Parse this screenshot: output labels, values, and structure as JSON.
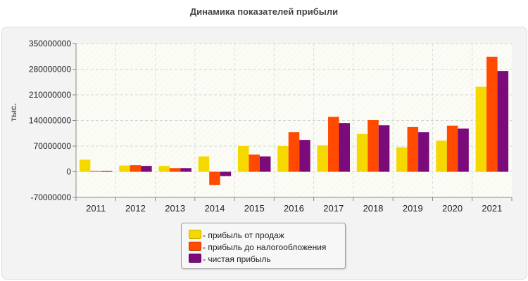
{
  "title": "Динамика показателей прибыли",
  "chart_data": {
    "type": "bar",
    "title": "Динамика показателей прибыли",
    "xlabel": "",
    "ylabel": "тыс.",
    "categories": [
      "2011",
      "2012",
      "2013",
      "2014",
      "2015",
      "2016",
      "2017",
      "2018",
      "2019",
      "2020",
      "2021"
    ],
    "series": [
      {
        "name": "- прибыль от продаж",
        "color": "#f5d800",
        "values": [
          33000000,
          17000000,
          16000000,
          42000000,
          70000000,
          70000000,
          72000000,
          103000000,
          67000000,
          85000000,
          232000000
        ]
      },
      {
        "name": "- прибыль до налогообложения",
        "color": "#ff4a00",
        "values": [
          2000000,
          18000000,
          10000000,
          -36000000,
          47000000,
          108000000,
          150000000,
          141000000,
          122000000,
          126000000,
          314000000
        ]
      },
      {
        "name": "- чистая прибыль",
        "color": "#7b0a7b",
        "values": [
          2000000,
          16000000,
          10000000,
          -12000000,
          42000000,
          87000000,
          133000000,
          127000000,
          108000000,
          118000000,
          275000000
        ]
      }
    ],
    "yticks": [
      "350000000",
      "280000000",
      "210000000",
      "140000000",
      "70000000",
      "0",
      "-70000000"
    ],
    "ylim": [
      -70000000,
      350000000
    ],
    "grid": true,
    "legend_position": "bottom"
  }
}
